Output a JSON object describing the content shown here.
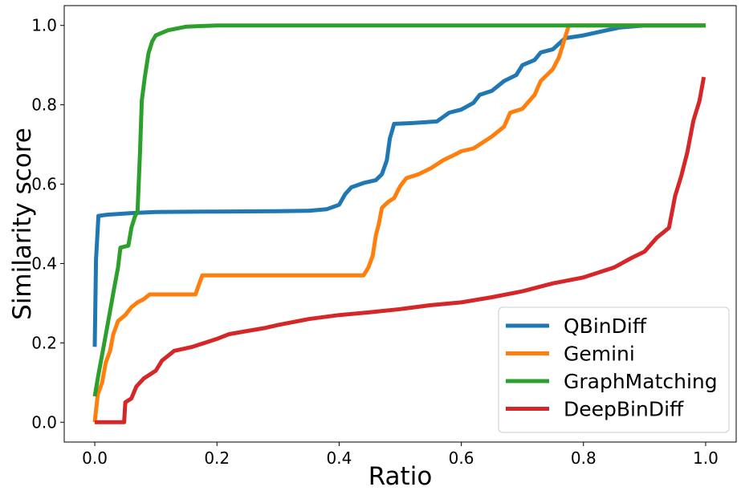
{
  "chart_data": {
    "type": "line",
    "title": "",
    "xlabel": "Ratio",
    "ylabel": "Similarity score",
    "xlim": [
      -0.05,
      1.05
    ],
    "ylim": [
      -0.05,
      1.05
    ],
    "xticks": [
      0.0,
      0.2,
      0.4,
      0.6,
      0.8,
      1.0
    ],
    "xtick_labels": [
      "0.0",
      "0.2",
      "0.4",
      "0.6",
      "0.8",
      "1.0"
    ],
    "yticks": [
      0.0,
      0.2,
      0.4,
      0.6,
      0.8,
      1.0
    ],
    "ytick_labels": [
      "0.0",
      "0.2",
      "0.4",
      "0.6",
      "0.8",
      "1.0"
    ],
    "grid": false,
    "legend_position": "lower-right",
    "series": [
      {
        "name": "QBinDiff",
        "color": "#1f77b4",
        "points": [
          [
            0.0,
            0.19
          ],
          [
            0.002,
            0.41
          ],
          [
            0.006,
            0.52
          ],
          [
            0.02,
            0.523
          ],
          [
            0.04,
            0.525
          ],
          [
            0.06,
            0.527
          ],
          [
            0.1,
            0.53
          ],
          [
            0.2,
            0.531
          ],
          [
            0.3,
            0.532
          ],
          [
            0.35,
            0.533
          ],
          [
            0.38,
            0.537
          ],
          [
            0.4,
            0.548
          ],
          [
            0.41,
            0.575
          ],
          [
            0.42,
            0.592
          ],
          [
            0.44,
            0.603
          ],
          [
            0.46,
            0.61
          ],
          [
            0.47,
            0.625
          ],
          [
            0.478,
            0.66
          ],
          [
            0.483,
            0.715
          ],
          [
            0.49,
            0.752
          ],
          [
            0.52,
            0.754
          ],
          [
            0.56,
            0.758
          ],
          [
            0.58,
            0.78
          ],
          [
            0.6,
            0.788
          ],
          [
            0.62,
            0.805
          ],
          [
            0.63,
            0.825
          ],
          [
            0.65,
            0.835
          ],
          [
            0.67,
            0.86
          ],
          [
            0.69,
            0.875
          ],
          [
            0.7,
            0.9
          ],
          [
            0.72,
            0.913
          ],
          [
            0.73,
            0.932
          ],
          [
            0.75,
            0.94
          ],
          [
            0.77,
            0.968
          ],
          [
            0.8,
            0.975
          ],
          [
            0.83,
            0.985
          ],
          [
            0.86,
            0.995
          ],
          [
            0.9,
            1.0
          ],
          [
            1.0,
            1.0
          ]
        ]
      },
      {
        "name": "Gemini",
        "color": "#ff7f0e",
        "points": [
          [
            0.0,
            0.0
          ],
          [
            0.005,
            0.07
          ],
          [
            0.012,
            0.1
          ],
          [
            0.018,
            0.15
          ],
          [
            0.025,
            0.18
          ],
          [
            0.03,
            0.22
          ],
          [
            0.038,
            0.255
          ],
          [
            0.05,
            0.27
          ],
          [
            0.06,
            0.29
          ],
          [
            0.07,
            0.302
          ],
          [
            0.08,
            0.31
          ],
          [
            0.09,
            0.322
          ],
          [
            0.15,
            0.322
          ],
          [
            0.165,
            0.322
          ],
          [
            0.17,
            0.345
          ],
          [
            0.176,
            0.37
          ],
          [
            0.3,
            0.37
          ],
          [
            0.44,
            0.37
          ],
          [
            0.448,
            0.39
          ],
          [
            0.455,
            0.42
          ],
          [
            0.46,
            0.47
          ],
          [
            0.465,
            0.5
          ],
          [
            0.47,
            0.54
          ],
          [
            0.48,
            0.555
          ],
          [
            0.49,
            0.565
          ],
          [
            0.5,
            0.595
          ],
          [
            0.51,
            0.615
          ],
          [
            0.53,
            0.625
          ],
          [
            0.55,
            0.64
          ],
          [
            0.57,
            0.66
          ],
          [
            0.59,
            0.675
          ],
          [
            0.6,
            0.683
          ],
          [
            0.62,
            0.69
          ],
          [
            0.63,
            0.7
          ],
          [
            0.65,
            0.72
          ],
          [
            0.67,
            0.745
          ],
          [
            0.68,
            0.78
          ],
          [
            0.7,
            0.79
          ],
          [
            0.72,
            0.825
          ],
          [
            0.73,
            0.86
          ],
          [
            0.75,
            0.89
          ],
          [
            0.76,
            0.92
          ],
          [
            0.77,
            0.97
          ],
          [
            0.776,
            1.0
          ],
          [
            1.0,
            1.0
          ]
        ]
      },
      {
        "name": "GraphMatching",
        "color": "#2ca02c",
        "points": [
          [
            0.0,
            0.065
          ],
          [
            0.006,
            0.12
          ],
          [
            0.012,
            0.17
          ],
          [
            0.018,
            0.22
          ],
          [
            0.025,
            0.28
          ],
          [
            0.032,
            0.34
          ],
          [
            0.038,
            0.39
          ],
          [
            0.042,
            0.44
          ],
          [
            0.055,
            0.445
          ],
          [
            0.06,
            0.49
          ],
          [
            0.066,
            0.52
          ],
          [
            0.07,
            0.53
          ],
          [
            0.074,
            0.68
          ],
          [
            0.077,
            0.81
          ],
          [
            0.082,
            0.87
          ],
          [
            0.088,
            0.93
          ],
          [
            0.094,
            0.96
          ],
          [
            0.1,
            0.975
          ],
          [
            0.12,
            0.988
          ],
          [
            0.15,
            0.997
          ],
          [
            0.2,
            1.0
          ],
          [
            1.0,
            1.0
          ]
        ]
      },
      {
        "name": "DeepBinDiff",
        "color": "#d62728",
        "points": [
          [
            0.0,
            0.0
          ],
          [
            0.048,
            0.0
          ],
          [
            0.05,
            0.05
          ],
          [
            0.06,
            0.06
          ],
          [
            0.068,
            0.09
          ],
          [
            0.08,
            0.11
          ],
          [
            0.1,
            0.13
          ],
          [
            0.11,
            0.155
          ],
          [
            0.13,
            0.18
          ],
          [
            0.16,
            0.19
          ],
          [
            0.18,
            0.2
          ],
          [
            0.2,
            0.21
          ],
          [
            0.22,
            0.222
          ],
          [
            0.25,
            0.23
          ],
          [
            0.28,
            0.238
          ],
          [
            0.3,
            0.245
          ],
          [
            0.35,
            0.26
          ],
          [
            0.4,
            0.27
          ],
          [
            0.45,
            0.277
          ],
          [
            0.5,
            0.285
          ],
          [
            0.55,
            0.295
          ],
          [
            0.6,
            0.302
          ],
          [
            0.65,
            0.315
          ],
          [
            0.7,
            0.33
          ],
          [
            0.75,
            0.35
          ],
          [
            0.8,
            0.365
          ],
          [
            0.85,
            0.39
          ],
          [
            0.88,
            0.415
          ],
          [
            0.9,
            0.43
          ],
          [
            0.92,
            0.465
          ],
          [
            0.94,
            0.49
          ],
          [
            0.95,
            0.57
          ],
          [
            0.96,
            0.62
          ],
          [
            0.97,
            0.68
          ],
          [
            0.98,
            0.76
          ],
          [
            0.99,
            0.81
          ],
          [
            0.997,
            0.87
          ]
        ]
      }
    ]
  }
}
